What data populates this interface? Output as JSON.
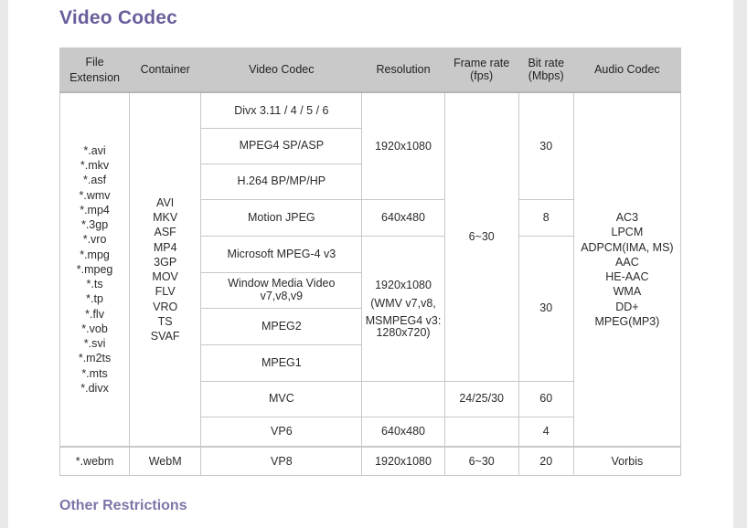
{
  "title": "Video Codec",
  "subtitle": "Other Restrictions",
  "headers": {
    "file_extension": "File Extension",
    "container": "Container",
    "video_codec": "Video Codec",
    "resolution": "Resolution",
    "frame_rate": "Frame rate (fps)",
    "bit_rate": "Bit rate (Mbps)",
    "audio_codec": "Audio Codec"
  },
  "extensions": [
    "*.avi",
    "*.mkv",
    "*.asf",
    "*.wmv",
    "*.mp4",
    "*.3gp",
    "*.vro",
    "*.mpg",
    "*.mpeg",
    "*.ts",
    "*.tp",
    "*.flv",
    "*.vob",
    "*.svi",
    "*.m2ts",
    "*.mts",
    "*.divx"
  ],
  "containers": [
    "AVI",
    "MKV",
    "ASF",
    "MP4",
    "3GP",
    "MOV",
    "FLV",
    "VRO",
    "TS",
    "SVAF"
  ],
  "codecs": {
    "divx": "Divx 3.11 / 4 / 5 / 6",
    "mpeg4": "MPEG4 SP/ASP",
    "h264": "H.264 BP/MP/HP",
    "mjpeg": "Motion JPEG",
    "msmpeg4": "Microsoft MPEG-4 v3",
    "wmv": "Window Media Video v7,v8,v9",
    "mpeg2": "MPEG2",
    "mpeg1": "MPEG1",
    "mvc": "MVC",
    "vp6": "VP6"
  },
  "resolutions": {
    "r1": "1920x1080",
    "r2": "640x480",
    "r3_line1": "1920x1080",
    "r3_line2": "(WMV v7,v8,",
    "r3_line3": "MSMPEG4 v3:",
    "r3_line4": "1280x720)",
    "r4": "640x480"
  },
  "frame_rates": {
    "main": "6~30",
    "mvc": "24/25/30"
  },
  "bit_rates": {
    "b1": "30",
    "b2": "8",
    "b3": "30",
    "b4": "60",
    "b5": "4"
  },
  "audio_codecs": [
    "AC3",
    "LPCM",
    "ADPCM(IMA, MS)",
    "AAC",
    "HE-AAC",
    "WMA",
    "DD+",
    "MPEG(MP3)"
  ],
  "webm_row": {
    "extension": "*.webm",
    "container": "WebM",
    "video_codec": "VP8",
    "resolution": "1920x1080",
    "frame_rate": "6~30",
    "bit_rate": "20",
    "audio_codec": "Vorbis"
  }
}
